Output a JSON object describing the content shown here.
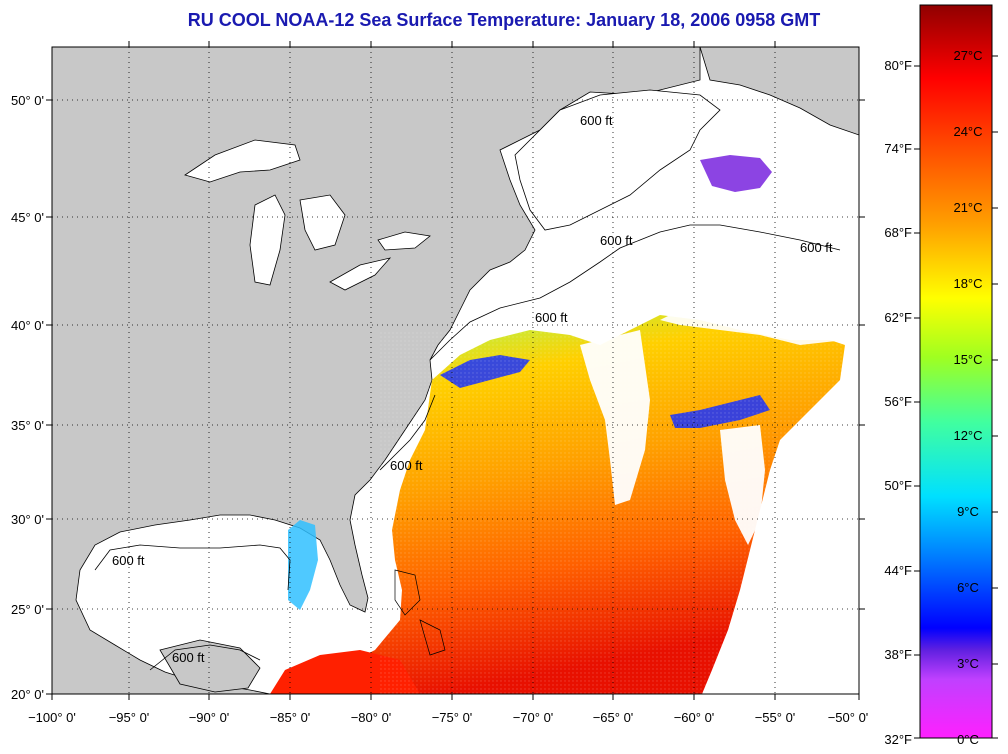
{
  "title": "RU COOL  NOAA-12  Sea Surface Temperature:  January 18, 2006 0958 GMT",
  "lat_labels": [
    "50° 0'",
    "45° 0'",
    "40° 0'",
    "35° 0'",
    "30° 0'",
    "25° 0'",
    "20° 0'"
  ],
  "lon_labels": [
    "−100° 0'",
    "−95° 0'",
    "−90° 0'",
    "−85° 0'",
    "−80° 0'",
    "−75° 0'",
    "−70° 0'",
    "−65° 0'",
    "−60° 0'",
    "−55° 0'",
    "−50° 0'"
  ],
  "contour_label": "600 ft",
  "colorbar": {
    "fahrenheit": [
      "80°F",
      "74°F",
      "68°F",
      "62°F",
      "56°F",
      "50°F",
      "44°F",
      "38°F",
      "32°F"
    ],
    "celsius": [
      "27°C",
      "24°C",
      "21°C",
      "18°C",
      "15°C",
      "12°C",
      "9°C",
      "6°C",
      "3°C",
      "0°C"
    ]
  },
  "colors": {
    "title": "#1a1ab0",
    "land": "#c8c8c8",
    "cloud": "#ffffff"
  }
}
